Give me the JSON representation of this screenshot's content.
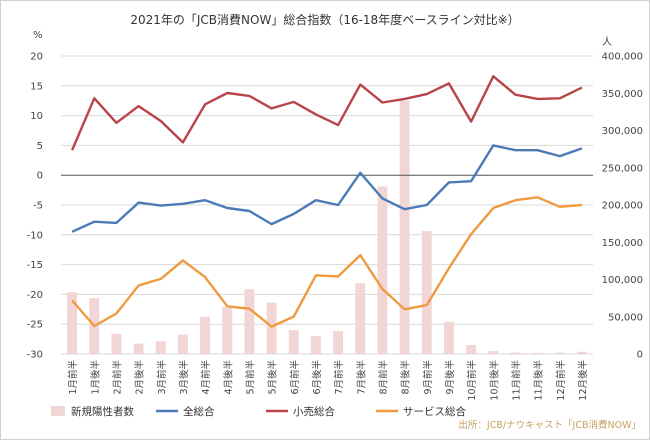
{
  "chart_data": {
    "type": "line",
    "title": "2021年の「JCB消費NOW」総合指数（16-18年度ベースライン対比※）",
    "left_axis_unit": "%",
    "right_axis_unit": "人",
    "ylim": [
      -30,
      20
    ],
    "y_ticks": [
      20,
      15,
      10,
      5,
      0,
      -5,
      -10,
      -15,
      -20,
      -25,
      -30
    ],
    "y2lim": [
      0,
      400000
    ],
    "y2_ticks": [
      "400,000",
      "350,000",
      "300,000",
      "250,000",
      "200,000",
      "150,000",
      "100,000",
      "50,000",
      "0"
    ],
    "y2_tick_values": [
      400000,
      350000,
      300000,
      250000,
      200000,
      150000,
      100000,
      50000,
      0
    ],
    "categories": [
      "1月前半",
      "1月後半",
      "2月前半",
      "2月後半",
      "3月前半",
      "3月後半",
      "4月前半",
      "4月後半",
      "5月前半",
      "5月後半",
      "6月前半",
      "6月後半",
      "7月前半",
      "7月後半",
      "8月前半",
      "8月後半",
      "9月前半",
      "9月後半",
      "10月前半",
      "10月後半",
      "11月前半",
      "11月後半",
      "12月前半",
      "12月後半"
    ],
    "bar_series": {
      "name": "新規陽性者数",
      "color": "#f2d6d6",
      "values": [
        83000,
        75000,
        27000,
        14000,
        17000,
        26000,
        50000,
        63000,
        87000,
        69000,
        32000,
        24000,
        31000,
        95000,
        225000,
        340000,
        165000,
        43000,
        12000,
        4000,
        2000,
        1500,
        2000,
        3000
      ]
    },
    "series": [
      {
        "name": "全総合",
        "color": "#4a7bb7",
        "values": [
          -9.5,
          -7.8,
          -8.0,
          -4.6,
          -5.1,
          -4.8,
          -4.2,
          -5.5,
          -6.0,
          -8.2,
          -6.5,
          -4.2,
          -5.0,
          0.4,
          -3.9,
          -5.7,
          -5.0,
          -1.2,
          -1.0,
          5.0,
          4.2,
          4.2,
          3.2,
          4.5
        ]
      },
      {
        "name": "小売総合",
        "color": "#b8444a",
        "values": [
          4.2,
          12.9,
          8.8,
          11.6,
          9.1,
          5.5,
          11.9,
          13.8,
          13.3,
          11.2,
          12.3,
          10.2,
          8.4,
          15.2,
          12.2,
          12.8,
          13.6,
          15.4,
          9.0,
          16.6,
          13.5,
          12.8,
          12.9,
          14.7
        ]
      },
      {
        "name": "サービス総合",
        "color": "#f09a40",
        "values": [
          -21.0,
          -25.3,
          -23.2,
          -18.5,
          -17.4,
          -14.3,
          -17.1,
          -22.0,
          -22.4,
          -25.4,
          -23.7,
          -16.8,
          -17.0,
          -13.4,
          -19.1,
          -22.5,
          -21.8,
          -15.6,
          -9.9,
          -5.5,
          -4.2,
          -3.7,
          -5.3,
          -5.0
        ]
      }
    ],
    "legend_position": "bottom",
    "grid": "horizontal"
  },
  "source_note": "出所：JCB/ナウキャスト「JCB消費NOW」"
}
